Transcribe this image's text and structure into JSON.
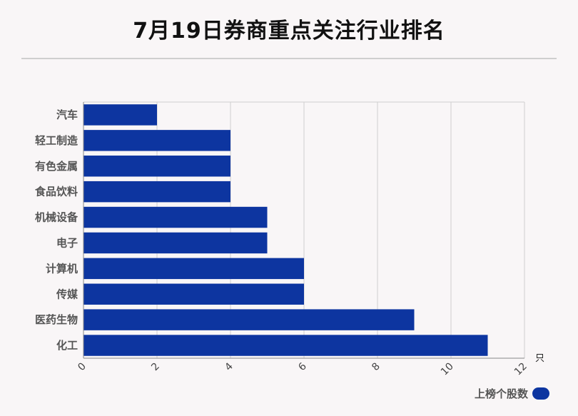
{
  "title": "7月19日券商重点关注行业排名",
  "legend": {
    "label": "上榜个股数",
    "color": "#0d35a0"
  },
  "chart_data": {
    "type": "bar",
    "orientation": "horizontal",
    "title": "7月19日券商重点关注行业排名",
    "categories": [
      "汽车",
      "轻工制造",
      "有色金属",
      "食品饮料",
      "机械设备",
      "电子",
      "计算机",
      "传媒",
      "医药生物",
      "化工"
    ],
    "series": [
      {
        "name": "上榜个股数",
        "values": [
          2,
          4,
          4,
          4,
          5,
          5,
          6,
          6,
          9,
          11
        ],
        "color": "#0d35a0"
      }
    ],
    "xlim": [
      0,
      12
    ],
    "xticks": [
      0,
      2,
      4,
      6,
      8,
      10,
      12
    ],
    "x_unit": "只",
    "grid": true,
    "legend_position": "bottom-right"
  }
}
